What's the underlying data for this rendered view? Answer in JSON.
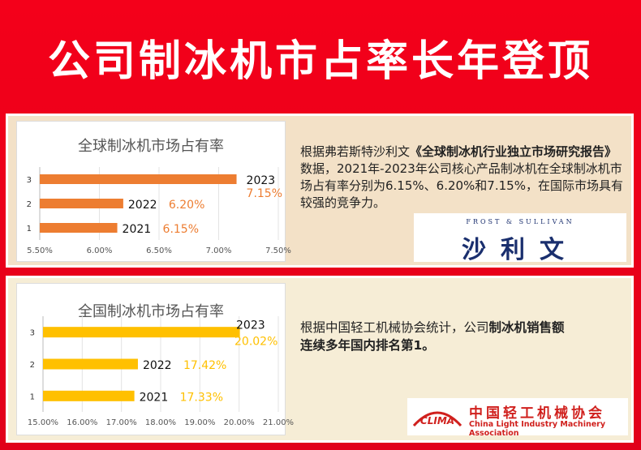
{
  "headline": "公司制冰机市占率长年登顶",
  "global_section": {
    "text_prefix": "根据弗若斯特沙利文",
    "text_bold": "《全球制冰机行业独立市场研究报告》",
    "text_rest": "数据，2021年-2023年公司核心产品制冰机在全球制冰机市场占有率分别为6.15%、6.20%和7.15%，在国际市场具有较强的竞争力。",
    "logo": {
      "small_text": "FROST & SULLIVAN",
      "big_text": "沙利文"
    }
  },
  "domestic_section": {
    "text_prefix": "根据中国轻工机械协会统计，公司",
    "text_bold": "制冰机销售额连续多年国内排名第1。",
    "logo": {
      "emblem_text": "CLIMA",
      "cn_name": "中国轻工机械协会",
      "en_name": "China Light Industry Machinery Association"
    }
  },
  "chart_data": [
    {
      "type": "bar",
      "orientation": "horizontal",
      "title": "全球制冰机市场占有率",
      "categories": [
        "1",
        "2",
        "3"
      ],
      "year_labels": [
        "2021",
        "2022",
        "2023"
      ],
      "value_labels": [
        "6.15%",
        "6.20%",
        "7.15%"
      ],
      "values": [
        6.15,
        6.2,
        7.15
      ],
      "xlim": [
        5.5,
        7.5
      ],
      "x_ticks": [
        "5.50%",
        "6.00%",
        "6.50%",
        "7.00%",
        "7.50%"
      ],
      "bar_color": "#ed7d31",
      "label_color": "#ed7d31",
      "grid": true
    },
    {
      "type": "bar",
      "orientation": "horizontal",
      "title": "全国制冰机市场占有率",
      "categories": [
        "1",
        "2",
        "3"
      ],
      "year_labels": [
        "2021",
        "2022",
        "2023"
      ],
      "value_labels": [
        "17.33%",
        "17.42%",
        "20.02%"
      ],
      "values": [
        17.33,
        17.42,
        20.02
      ],
      "xlim": [
        15,
        21
      ],
      "x_ticks": [
        "15.00%",
        "16.00%",
        "17.00%",
        "18.00%",
        "19.00%",
        "20.00%",
        "21.00%"
      ],
      "bar_color": "#ffc000",
      "label_color": "#ffc000",
      "grid": true
    }
  ]
}
